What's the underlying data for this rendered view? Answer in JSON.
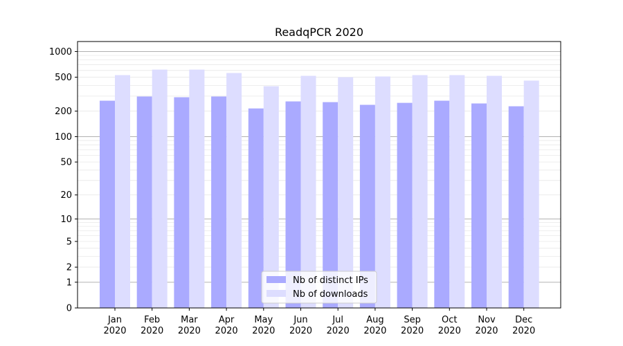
{
  "chart_data": {
    "type": "bar",
    "title": "ReadqPCR 2020",
    "xlabel": "",
    "ylabel": "",
    "yscale": "symlog (log10(1+y))",
    "ylim": [
      0,
      1200
    ],
    "yticks": [
      0,
      1,
      2,
      5,
      10,
      20,
      50,
      100,
      200,
      500,
      1000
    ],
    "categories": [
      "Jan\n2020",
      "Feb\n2020",
      "Mar\n2020",
      "Apr\n2020",
      "May\n2020",
      "Jun\n2020",
      "Jul\n2020",
      "Aug\n2020",
      "Sep\n2020",
      "Oct\n2020",
      "Nov\n2020",
      "Dec\n2020"
    ],
    "series": [
      {
        "name": "Nb of distinct IPs",
        "color": "#aaaaff",
        "values": [
          265,
          297,
          291,
          297,
          215,
          260,
          255,
          237,
          250,
          265,
          246,
          228
        ]
      },
      {
        "name": "Nb of downloads",
        "color": "#ddddff",
        "values": [
          529,
          614,
          614,
          560,
          392,
          519,
          500,
          510,
          529,
          529,
          519,
          456
        ]
      }
    ],
    "grid": true,
    "legend": "bottom-center"
  }
}
